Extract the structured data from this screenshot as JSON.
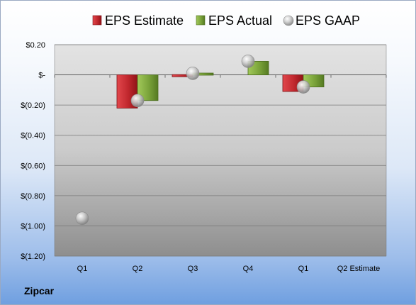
{
  "company": "Zipcar",
  "colors": {
    "estimate": "#c0272d",
    "actual": "#7aa33a",
    "gaap": "#b5b5b5"
  },
  "chart_data": {
    "type": "bar",
    "categories": [
      "Q1",
      "Q2",
      "Q3",
      "Q4",
      "Q1",
      "Q2 Estimate"
    ],
    "series": [
      {
        "name": "EPS Estimate",
        "values": [
          null,
          -0.22,
          -0.01,
          null,
          -0.11,
          null
        ]
      },
      {
        "name": "EPS Actual",
        "values": [
          null,
          -0.17,
          0.01,
          0.09,
          -0.08,
          null
        ]
      },
      {
        "name": "EPS GAAP",
        "values": [
          -0.95,
          -0.17,
          0.01,
          0.09,
          -0.08,
          null
        ]
      }
    ],
    "ylim": [
      -1.2,
      0.2
    ],
    "yticks": [
      0.2,
      0,
      -0.2,
      -0.4,
      -0.6,
      -0.8,
      -1.0,
      -1.2
    ],
    "ytick_labels": [
      "$0.20",
      "$-",
      "$(0.20)",
      "$(0.40)",
      "$(0.60)",
      "$(0.80)",
      "$(1.00)",
      "$(1.20)"
    ],
    "legend": "top",
    "grid": true
  }
}
